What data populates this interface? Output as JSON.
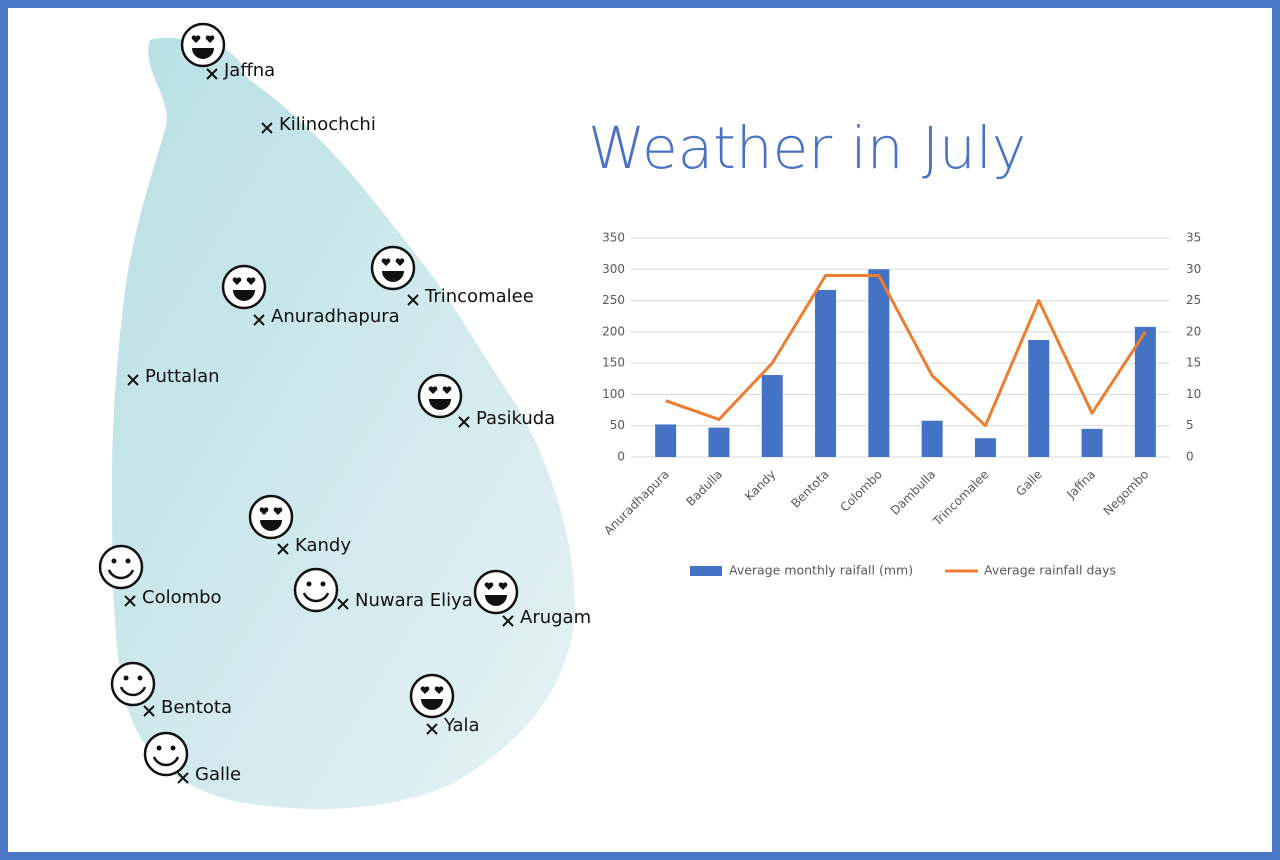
{
  "map": {
    "places": [
      "Jaffna",
      "Kilinochchi",
      "Trincomalee",
      "Anuradhapura",
      "Puttalan",
      "Pasikuda",
      "Kandy",
      "Colombo",
      "Nuwara Eliya",
      "Arugam",
      "Bentota",
      "Galle",
      "Yala"
    ]
  },
  "chart_data": {
    "type": "bar-line",
    "title": "Weather in July",
    "categories": [
      "Anuradhapura",
      "Badulla",
      "Kandy",
      "Bentota",
      "Colombo",
      "Dambulla",
      "Trincomalee",
      "Galle",
      "Jaffna",
      "Negombo"
    ],
    "series": [
      {
        "name": "Average monthly raifall (mm)",
        "type": "bar",
        "color": "#4472c4",
        "values": [
          52,
          47,
          131,
          267,
          300,
          58,
          30,
          187,
          45,
          208
        ]
      },
      {
        "name": "Average rainfall days",
        "type": "line",
        "axis": "y2",
        "color": "#ed7d31",
        "values": [
          9,
          6,
          15,
          29,
          29,
          13,
          5,
          25,
          7,
          20
        ]
      }
    ],
    "ylim": [
      0,
      350
    ],
    "yticks": [
      0,
      50,
      100,
      150,
      200,
      250,
      300,
      350
    ],
    "y2lim": [
      0,
      35
    ],
    "y2ticks": [
      0,
      5,
      10,
      15,
      20,
      25,
      30,
      35
    ],
    "grid": true,
    "legend": "bottom"
  }
}
